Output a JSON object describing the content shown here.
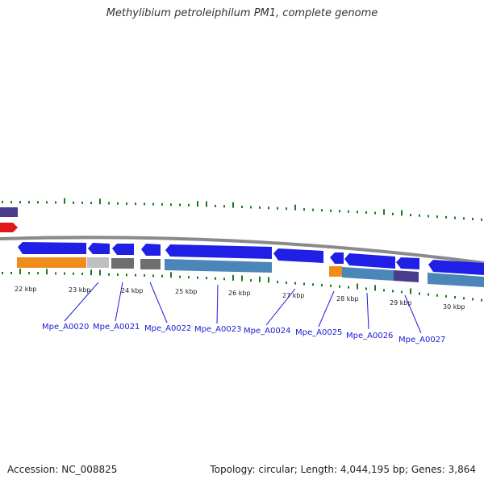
{
  "title": "Methylibium petroleiphilum PM1, complete genome",
  "footer": {
    "accession": "Accession: NC_008825",
    "stats": "Topology: circular; Length: 4,044,195 bp; Genes: 3,864"
  },
  "colors": {
    "backbone": "#8a8a8a",
    "forward_gene": "#1f1fe6",
    "cds_steelblue": "#4a86b8",
    "cds_orange": "#f08c1c",
    "cds_lightgray": "#c0c0c0",
    "cds_darkgray": "#6e6e6e",
    "cds_purple": "#4b3b8c",
    "rna_red": "#e01818",
    "gc_tick": "#1a7a1a",
    "label": "#1a1ad6"
  },
  "kbp_ticks": [
    "22 kbp",
    "23 kbp",
    "24 kbp",
    "25 kbp",
    "26 kbp",
    "27 kbp",
    "28 kbp",
    "29 kbp",
    "30 kbp"
  ],
  "gene_labels": [
    "Mpe_A0020",
    "Mpe_A0021",
    "Mpe_A0022",
    "Mpe_A0023",
    "Mpe_A0024",
    "Mpe_A0025",
    "Mpe_A0026",
    "Mpe_A0027"
  ]
}
